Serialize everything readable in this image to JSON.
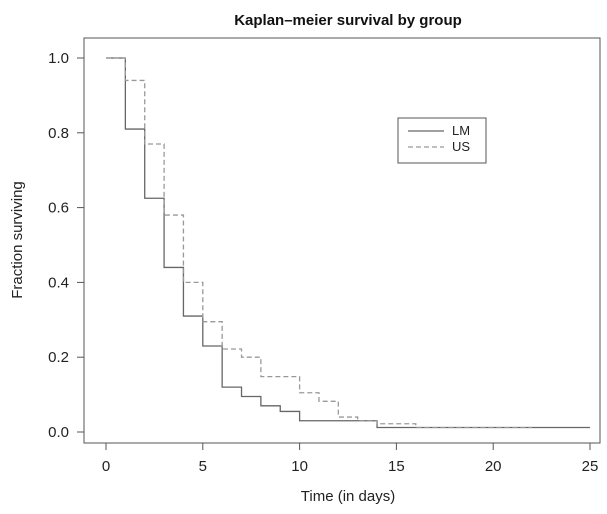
{
  "chart_data": {
    "type": "line",
    "step": true,
    "title": "Kaplan–meier survival by group",
    "xlabel": "Time (in days)",
    "ylabel": "Fraction surviving",
    "xlim": [
      0,
      25
    ],
    "ylim": [
      0,
      1.0
    ],
    "x_ticks": [
      "0",
      "5",
      "10",
      "15",
      "20",
      "25"
    ],
    "y_ticks": [
      "0.0",
      "0.2",
      "0.4",
      "0.6",
      "0.8",
      "1.0"
    ],
    "grid": false,
    "legend_position": "top-right",
    "series": [
      {
        "name": "LM",
        "style": "solid",
        "color": "#666666",
        "x": [
          0,
          1,
          2,
          3,
          4,
          5,
          6,
          7,
          8,
          9,
          10,
          14,
          25
        ],
        "y": [
          1.0,
          0.81,
          0.625,
          0.44,
          0.31,
          0.23,
          0.12,
          0.095,
          0.07,
          0.055,
          0.03,
          0.012,
          0.012
        ]
      },
      {
        "name": "US",
        "style": "dashed",
        "color": "#999999",
        "x": [
          0,
          1,
          2,
          3,
          4,
          5,
          6,
          7,
          8,
          10,
          11,
          12,
          13,
          14,
          16,
          22
        ],
        "y": [
          1.0,
          0.94,
          0.77,
          0.58,
          0.4,
          0.295,
          0.222,
          0.2,
          0.148,
          0.105,
          0.082,
          0.04,
          0.03,
          0.022,
          0.012,
          0.012
        ]
      }
    ]
  }
}
